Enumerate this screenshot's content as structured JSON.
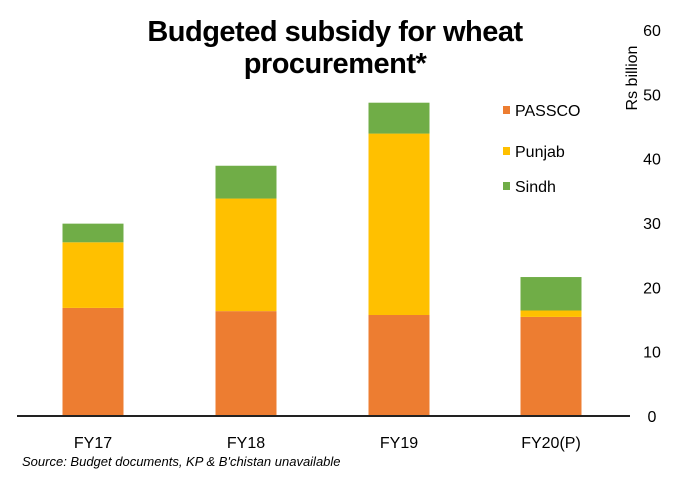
{
  "chart_data": {
    "type": "bar",
    "stacked": true,
    "title": "Budgeted subsidy for wheat procurement*",
    "ylabel": "Rs billion",
    "xlabel": "",
    "ylim": [
      0,
      60
    ],
    "yticks": [
      0,
      10,
      20,
      30,
      40,
      50,
      60
    ],
    "y_axis_position": "right",
    "grid": false,
    "legend_position": "top-right",
    "categories": [
      "FY17",
      "FY18",
      "FY19",
      "FY20(P)"
    ],
    "series": [
      {
        "name": "PASSCO",
        "color": "#ED7D31",
        "values": [
          16.8,
          16.3,
          15.7,
          15.4
        ]
      },
      {
        "name": "Punjab",
        "color": "#FFC000",
        "values": [
          10.2,
          17.5,
          28.2,
          1.0
        ]
      },
      {
        "name": "Sindh",
        "color": "#70AD47",
        "values": [
          2.9,
          5.1,
          4.8,
          5.2
        ]
      }
    ],
    "source": "Source: Budget documents, KP & B'chistan unavailable"
  }
}
